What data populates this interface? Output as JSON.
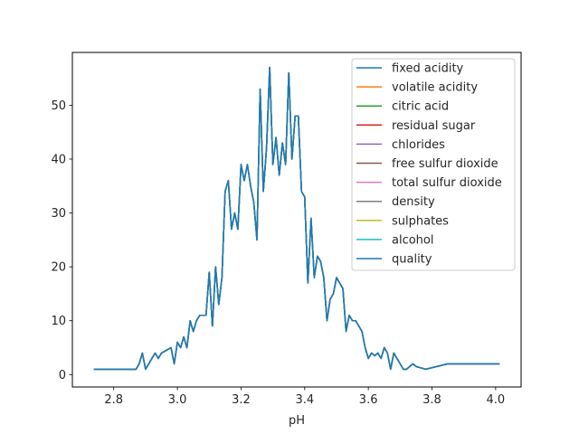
{
  "chart_data": {
    "type": "line",
    "title": "",
    "xlabel": "pH",
    "ylabel": "",
    "xlim": [
      2.67,
      4.08
    ],
    "ylim": [
      -2.3,
      59.8
    ],
    "xticks": [
      "2.8",
      "3.0",
      "3.2",
      "3.4",
      "3.6",
      "3.8",
      "4.0"
    ],
    "yticks": [
      "0",
      "10",
      "20",
      "30",
      "40",
      "50"
    ],
    "grid": false,
    "legend_position": "upper right",
    "x": [
      2.74,
      2.86,
      2.87,
      2.88,
      2.89,
      2.9,
      2.92,
      2.93,
      2.94,
      2.95,
      2.98,
      2.99,
      3.0,
      3.01,
      3.02,
      3.03,
      3.04,
      3.05,
      3.06,
      3.07,
      3.08,
      3.09,
      3.1,
      3.11,
      3.12,
      3.13,
      3.14,
      3.15,
      3.16,
      3.17,
      3.18,
      3.19,
      3.2,
      3.21,
      3.22,
      3.23,
      3.24,
      3.25,
      3.26,
      3.27,
      3.28,
      3.29,
      3.3,
      3.31,
      3.32,
      3.33,
      3.34,
      3.35,
      3.36,
      3.37,
      3.38,
      3.39,
      3.4,
      3.41,
      3.42,
      3.43,
      3.44,
      3.45,
      3.46,
      3.47,
      3.48,
      3.49,
      3.5,
      3.51,
      3.52,
      3.53,
      3.54,
      3.55,
      3.56,
      3.57,
      3.58,
      3.59,
      3.6,
      3.61,
      3.62,
      3.63,
      3.64,
      3.65,
      3.66,
      3.67,
      3.68,
      3.69,
      3.7,
      3.71,
      3.72,
      3.74,
      3.75,
      3.78,
      3.85,
      3.9,
      4.01
    ],
    "series": [
      {
        "name": "fixed acidity",
        "color": "#1f77b4",
        "values": [
          1,
          1,
          1,
          2,
          4,
          1,
          3,
          4,
          3,
          4,
          5,
          2,
          6,
          5,
          7,
          5,
          10,
          8,
          10,
          11,
          11,
          11,
          19,
          9,
          20,
          13,
          18,
          34,
          36,
          27,
          30,
          27,
          39,
          36,
          39,
          35,
          32,
          25,
          53,
          34,
          42,
          57,
          39,
          44,
          37,
          43,
          39,
          56,
          40,
          48,
          48,
          34,
          33,
          17,
          29,
          18,
          22,
          21,
          18,
          10,
          14,
          15,
          18,
          17,
          16,
          8,
          11,
          10,
          10,
          9,
          8,
          5,
          3,
          4,
          3.5,
          4,
          3,
          5,
          4,
          1,
          4,
          3,
          2,
          1,
          1,
          2,
          1.5,
          1,
          2,
          2,
          2
        ]
      },
      {
        "name": "volatile acidity",
        "color": "#ff7f0e",
        "values": [
          1,
          1,
          1,
          2,
          4,
          1,
          3,
          4,
          3,
          4,
          5,
          2,
          6,
          5,
          7,
          5,
          10,
          8,
          10,
          11,
          11,
          11,
          19,
          9,
          20,
          13,
          18,
          34,
          36,
          27,
          30,
          27,
          39,
          36,
          39,
          35,
          32,
          25,
          53,
          34,
          42,
          57,
          39,
          44,
          37,
          43,
          39,
          56,
          40,
          48,
          48,
          34,
          33,
          17,
          29,
          18,
          22,
          21,
          18,
          10,
          14,
          15,
          18,
          17,
          16,
          8,
          11,
          10,
          10,
          9,
          8,
          5,
          3,
          4,
          3.5,
          4,
          3,
          5,
          4,
          1,
          4,
          3,
          2,
          1,
          1,
          2,
          1.5,
          1,
          2,
          2,
          2
        ]
      },
      {
        "name": "citric acid",
        "color": "#2ca02c",
        "values": [
          1,
          1,
          1,
          2,
          4,
          1,
          3,
          4,
          3,
          4,
          5,
          2,
          6,
          5,
          7,
          5,
          10,
          8,
          10,
          11,
          11,
          11,
          19,
          9,
          20,
          13,
          18,
          34,
          36,
          27,
          30,
          27,
          39,
          36,
          39,
          35,
          32,
          25,
          53,
          34,
          42,
          57,
          39,
          44,
          37,
          43,
          39,
          56,
          40,
          48,
          48,
          34,
          33,
          17,
          29,
          18,
          22,
          21,
          18,
          10,
          14,
          15,
          18,
          17,
          16,
          8,
          11,
          10,
          10,
          9,
          8,
          5,
          3,
          4,
          3.5,
          4,
          3,
          5,
          4,
          1,
          4,
          3,
          2,
          1,
          1,
          2,
          1.5,
          1,
          2,
          2,
          2
        ]
      },
      {
        "name": "residual sugar",
        "color": "#d62728",
        "values": [
          1,
          1,
          1,
          2,
          4,
          1,
          3,
          4,
          3,
          4,
          5,
          2,
          6,
          5,
          7,
          5,
          10,
          8,
          10,
          11,
          11,
          11,
          19,
          9,
          20,
          13,
          18,
          34,
          36,
          27,
          30,
          27,
          39,
          36,
          39,
          35,
          32,
          25,
          53,
          34,
          42,
          57,
          39,
          44,
          37,
          43,
          39,
          56,
          40,
          48,
          48,
          34,
          33,
          17,
          29,
          18,
          22,
          21,
          18,
          10,
          14,
          15,
          18,
          17,
          16,
          8,
          11,
          10,
          10,
          9,
          8,
          5,
          3,
          4,
          3.5,
          4,
          3,
          5,
          4,
          1,
          4,
          3,
          2,
          1,
          1,
          2,
          1.5,
          1,
          2,
          2,
          2
        ]
      },
      {
        "name": "chlorides",
        "color": "#9467bd",
        "values": [
          1,
          1,
          1,
          2,
          4,
          1,
          3,
          4,
          3,
          4,
          5,
          2,
          6,
          5,
          7,
          5,
          10,
          8,
          10,
          11,
          11,
          11,
          19,
          9,
          20,
          13,
          18,
          34,
          36,
          27,
          30,
          27,
          39,
          36,
          39,
          35,
          32,
          25,
          53,
          34,
          42,
          57,
          39,
          44,
          37,
          43,
          39,
          56,
          40,
          48,
          48,
          34,
          33,
          17,
          29,
          18,
          22,
          21,
          18,
          10,
          14,
          15,
          18,
          17,
          16,
          8,
          11,
          10,
          10,
          9,
          8,
          5,
          3,
          4,
          3.5,
          4,
          3,
          5,
          4,
          1,
          4,
          3,
          2,
          1,
          1,
          2,
          1.5,
          1,
          2,
          2,
          2
        ]
      },
      {
        "name": "free sulfur dioxide",
        "color": "#8c564b",
        "values": [
          1,
          1,
          1,
          2,
          4,
          1,
          3,
          4,
          3,
          4,
          5,
          2,
          6,
          5,
          7,
          5,
          10,
          8,
          10,
          11,
          11,
          11,
          19,
          9,
          20,
          13,
          18,
          34,
          36,
          27,
          30,
          27,
          39,
          36,
          39,
          35,
          32,
          25,
          53,
          34,
          42,
          57,
          39,
          44,
          37,
          43,
          39,
          56,
          40,
          48,
          48,
          34,
          33,
          17,
          29,
          18,
          22,
          21,
          18,
          10,
          14,
          15,
          18,
          17,
          16,
          8,
          11,
          10,
          10,
          9,
          8,
          5,
          3,
          4,
          3.5,
          4,
          3,
          5,
          4,
          1,
          4,
          3,
          2,
          1,
          1,
          2,
          1.5,
          1,
          2,
          2,
          2
        ]
      },
      {
        "name": "total sulfur dioxide",
        "color": "#e377c2",
        "values": [
          1,
          1,
          1,
          2,
          4,
          1,
          3,
          4,
          3,
          4,
          5,
          2,
          6,
          5,
          7,
          5,
          10,
          8,
          10,
          11,
          11,
          11,
          19,
          9,
          20,
          13,
          18,
          34,
          36,
          27,
          30,
          27,
          39,
          36,
          39,
          35,
          32,
          25,
          53,
          34,
          42,
          57,
          39,
          44,
          37,
          43,
          39,
          56,
          40,
          48,
          48,
          34,
          33,
          17,
          29,
          18,
          22,
          21,
          18,
          10,
          14,
          15,
          18,
          17,
          16,
          8,
          11,
          10,
          10,
          9,
          8,
          5,
          3,
          4,
          3.5,
          4,
          3,
          5,
          4,
          1,
          4,
          3,
          2,
          1,
          1,
          2,
          1.5,
          1,
          2,
          2,
          2
        ]
      },
      {
        "name": "density",
        "color": "#7f7f7f",
        "values": [
          1,
          1,
          1,
          2,
          4,
          1,
          3,
          4,
          3,
          4,
          5,
          2,
          6,
          5,
          7,
          5,
          10,
          8,
          10,
          11,
          11,
          11,
          19,
          9,
          20,
          13,
          18,
          34,
          36,
          27,
          30,
          27,
          39,
          36,
          39,
          35,
          32,
          25,
          53,
          34,
          42,
          57,
          39,
          44,
          37,
          43,
          39,
          56,
          40,
          48,
          48,
          34,
          33,
          17,
          29,
          18,
          22,
          21,
          18,
          10,
          14,
          15,
          18,
          17,
          16,
          8,
          11,
          10,
          10,
          9,
          8,
          5,
          3,
          4,
          3.5,
          4,
          3,
          5,
          4,
          1,
          4,
          3,
          2,
          1,
          1,
          2,
          1.5,
          1,
          2,
          2,
          2
        ]
      },
      {
        "name": "sulphates",
        "color": "#bcbd22",
        "values": [
          1,
          1,
          1,
          2,
          4,
          1,
          3,
          4,
          3,
          4,
          5,
          2,
          6,
          5,
          7,
          5,
          10,
          8,
          10,
          11,
          11,
          11,
          19,
          9,
          20,
          13,
          18,
          34,
          36,
          27,
          30,
          27,
          39,
          36,
          39,
          35,
          32,
          25,
          53,
          34,
          42,
          57,
          39,
          44,
          37,
          43,
          39,
          56,
          40,
          48,
          48,
          34,
          33,
          17,
          29,
          18,
          22,
          21,
          18,
          10,
          14,
          15,
          18,
          17,
          16,
          8,
          11,
          10,
          10,
          9,
          8,
          5,
          3,
          4,
          3.5,
          4,
          3,
          5,
          4,
          1,
          4,
          3,
          2,
          1,
          1,
          2,
          1.5,
          1,
          2,
          2,
          2
        ]
      },
      {
        "name": "alcohol",
        "color": "#17becf",
        "values": [
          1,
          1,
          1,
          2,
          4,
          1,
          3,
          4,
          3,
          4,
          5,
          2,
          6,
          5,
          7,
          5,
          10,
          8,
          10,
          11,
          11,
          11,
          19,
          9,
          20,
          13,
          18,
          34,
          36,
          27,
          30,
          27,
          39,
          36,
          39,
          35,
          32,
          25,
          53,
          34,
          42,
          57,
          39,
          44,
          37,
          43,
          39,
          56,
          40,
          48,
          48,
          34,
          33,
          17,
          29,
          18,
          22,
          21,
          18,
          10,
          14,
          15,
          18,
          17,
          16,
          8,
          11,
          10,
          10,
          9,
          8,
          5,
          3,
          4,
          3.5,
          4,
          3,
          5,
          4,
          1,
          4,
          3,
          2,
          1,
          1,
          2,
          1.5,
          1,
          2,
          2,
          2
        ]
      },
      {
        "name": "quality",
        "color": "#1f77b4",
        "values": [
          1,
          1,
          1,
          2,
          4,
          1,
          3,
          4,
          3,
          4,
          5,
          2,
          6,
          5,
          7,
          5,
          10,
          8,
          10,
          11,
          11,
          11,
          19,
          9,
          20,
          13,
          18,
          34,
          36,
          27,
          30,
          27,
          39,
          36,
          39,
          35,
          32,
          25,
          53,
          34,
          42,
          57,
          39,
          44,
          37,
          43,
          39,
          56,
          40,
          48,
          48,
          34,
          33,
          17,
          29,
          18,
          22,
          21,
          18,
          10,
          14,
          15,
          18,
          17,
          16,
          8,
          11,
          10,
          10,
          9,
          8,
          5,
          3,
          4,
          3.5,
          4,
          3,
          5,
          4,
          1,
          4,
          3,
          2,
          1,
          1,
          2,
          1.5,
          1,
          2,
          2,
          2
        ]
      }
    ]
  }
}
